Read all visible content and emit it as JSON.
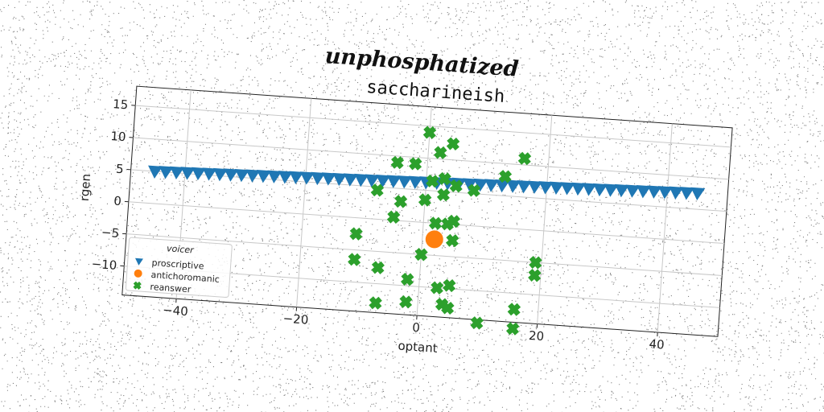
{
  "figure": {
    "headline": "unphosphatized"
  },
  "colors": {
    "series": [
      "#1f77b4",
      "#ff7f0e",
      "#2ca02c"
    ],
    "grid": "#c8c8c8",
    "axis": "#222222",
    "background": "#ffffff"
  },
  "chart_data": {
    "type": "scatter",
    "title": "saccharineish",
    "xlabel": "optant",
    "ylabel": "rgen",
    "xlim": [
      -49,
      50
    ],
    "ylim": [
      -14.5,
      18
    ],
    "xticks": [
      -40,
      -20,
      0,
      20,
      40
    ],
    "yticks": [
      -10,
      -5,
      0,
      5,
      10,
      15
    ],
    "grid": true,
    "legend": {
      "title": "voicer",
      "position": "lower-left"
    },
    "series": [
      {
        "name": "proscriptive",
        "marker": "triangle-down",
        "x": [
          -45,
          -43.2,
          -41.4,
          -39.6,
          -37.8,
          -36,
          -34.2,
          -32.4,
          -30.6,
          -28.8,
          -27,
          -25.2,
          -23.4,
          -21.6,
          -19.8,
          -18,
          -16.2,
          -14.4,
          -12.6,
          -10.8,
          -9,
          -7.2,
          -5.4,
          -3.6,
          -1.8,
          0,
          1.8,
          3.6,
          5.4,
          7.2,
          9,
          10.8,
          12.6,
          14.4,
          16.2,
          18,
          19.8,
          21.6,
          23.4,
          25.2,
          27,
          28.8,
          30.6,
          32.4,
          34.2,
          36,
          37.8,
          39.6,
          41.4,
          43.2,
          45
        ],
        "y": [
          5.0,
          5.05,
          5.1,
          5.15,
          5.2,
          5.25,
          5.3,
          5.35,
          5.4,
          5.45,
          5.5,
          5.55,
          5.6,
          5.65,
          5.7,
          5.75,
          5.8,
          5.85,
          5.9,
          5.95,
          6.0,
          6.05,
          6.1,
          6.15,
          6.2,
          6.25,
          6.3,
          6.35,
          6.4,
          6.45,
          6.5,
          6.55,
          6.6,
          6.65,
          6.7,
          6.75,
          6.8,
          6.85,
          6.9,
          6.95,
          7.0,
          7.05,
          7.1,
          7.15,
          7.2,
          7.25,
          7.3,
          7.35,
          7.4,
          7.45,
          7.5
        ]
      },
      {
        "name": "antichoromanic",
        "marker": "circle",
        "x": [
          2
        ],
        "y": [
          -2.5
        ]
      },
      {
        "name": "reanswer",
        "marker": "x-filled",
        "x": [
          0,
          2,
          4,
          -5,
          -2,
          13,
          16,
          1,
          3,
          5,
          8,
          -8,
          -4,
          0,
          3,
          -5,
          2,
          4,
          5,
          -11,
          5,
          0,
          -11,
          -7,
          -2,
          3,
          5,
          19,
          19,
          -2,
          4,
          5,
          -7,
          16,
          10,
          16
        ],
        "y": [
          14,
          11,
          12.5,
          9,
          9,
          8,
          11,
          6.5,
          7,
          6,
          5.5,
          4.5,
          3,
          3.5,
          4.5,
          0.5,
          0,
          0,
          0.5,
          -2.5,
          -2.5,
          -5,
          -6.5,
          -7.5,
          -9,
          -10,
          -9.5,
          -5,
          -7,
          -12.5,
          -12.5,
          -13,
          -13,
          -12.5,
          -15,
          -15.5
        ]
      }
    ]
  }
}
